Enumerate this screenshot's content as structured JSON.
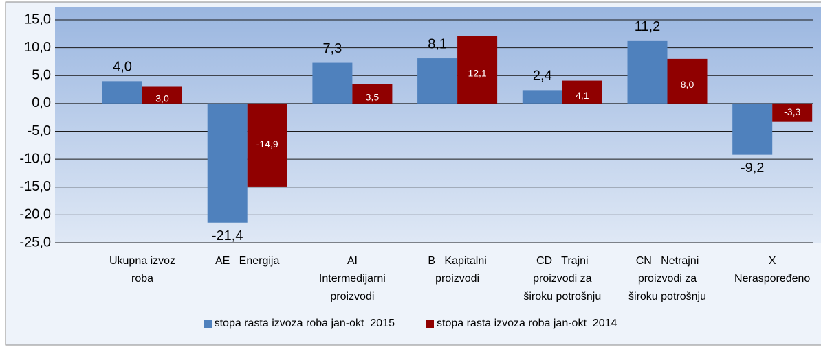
{
  "chart_data": {
    "type": "bar",
    "categories": [
      "Ukupna izvoz\nroba",
      "AE   Energija",
      "AI\nIntermedijarni\nproizvodi",
      "B   Kapitalni\nproizvodi",
      "CD   Trajni\nproizvodi za\nširoku potrošnju",
      "CN   Netrajni\nproizvodi za\nširoku potrošnju",
      "X\nNeraspoređeno"
    ],
    "series": [
      {
        "name": "stopa rasta izvoza roba jan-okt_2015",
        "color": "#4f81bd",
        "values": [
          4.0,
          -21.4,
          7.3,
          8.1,
          2.4,
          11.2,
          -9.2
        ],
        "value_labels": [
          "4,0",
          "-21,4",
          "7,3",
          "8,1",
          "2,4",
          "11,2",
          "-9,2"
        ]
      },
      {
        "name": "stopa rasta izvoza  roba jan-okt_2014",
        "color": "#900000",
        "values": [
          3.0,
          -14.9,
          3.5,
          12.1,
          4.1,
          8.0,
          -3.3
        ],
        "value_labels": [
          "3,0",
          "-14,9",
          "3,5",
          "12,1",
          "4,1",
          "8,0",
          "-3,3"
        ]
      }
    ],
    "ylim": [
      -25,
      15
    ],
    "yticks": [
      {
        "value": -25,
        "label": "-25,0"
      },
      {
        "value": -20,
        "label": "-20,0"
      },
      {
        "value": -15,
        "label": "-15,0"
      },
      {
        "value": -10,
        "label": "-10,0"
      },
      {
        "value": -5,
        "label": "-5,0"
      },
      {
        "value": 0,
        "label": "0,0"
      },
      {
        "value": 5,
        "label": "5,0"
      },
      {
        "value": 10,
        "label": "10,0"
      },
      {
        "value": 15,
        "label": "15,0"
      }
    ],
    "grid": true,
    "legend": "bottom"
  }
}
